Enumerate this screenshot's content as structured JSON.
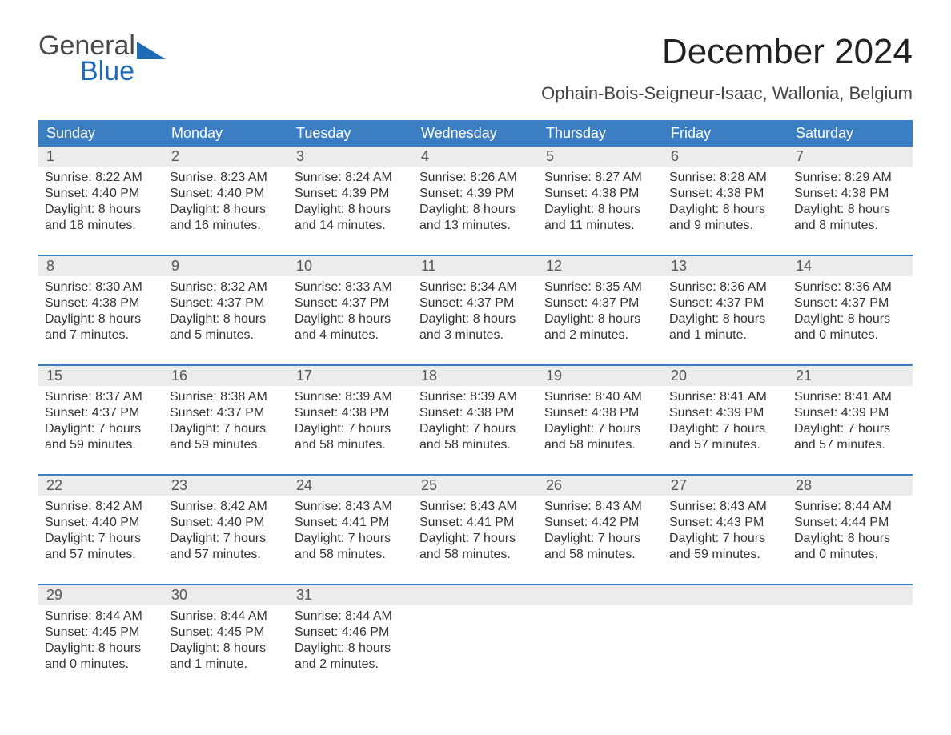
{
  "logo": {
    "line1": "General",
    "line2": "Blue",
    "accent": "#1f6bb8",
    "grey": "#4a4a4a"
  },
  "title": "December 2024",
  "subtitle": "Ophain-Bois-Seigneur-Isaac, Wallonia, Belgium",
  "colors": {
    "header_bg": "#3b7ec1",
    "header_fg": "#ffffff",
    "daynum_bg": "#ececec",
    "week_rule": "#3b7ec1",
    "text": "#333333"
  },
  "weekdays": [
    "Sunday",
    "Monday",
    "Tuesday",
    "Wednesday",
    "Thursday",
    "Friday",
    "Saturday"
  ],
  "weeks": [
    [
      {
        "n": "1",
        "sunrise": "8:22 AM",
        "sunset": "4:40 PM",
        "dl1": "Daylight: 8 hours",
        "dl2": "and 18 minutes."
      },
      {
        "n": "2",
        "sunrise": "8:23 AM",
        "sunset": "4:40 PM",
        "dl1": "Daylight: 8 hours",
        "dl2": "and 16 minutes."
      },
      {
        "n": "3",
        "sunrise": "8:24 AM",
        "sunset": "4:39 PM",
        "dl1": "Daylight: 8 hours",
        "dl2": "and 14 minutes."
      },
      {
        "n": "4",
        "sunrise": "8:26 AM",
        "sunset": "4:39 PM",
        "dl1": "Daylight: 8 hours",
        "dl2": "and 13 minutes."
      },
      {
        "n": "5",
        "sunrise": "8:27 AM",
        "sunset": "4:38 PM",
        "dl1": "Daylight: 8 hours",
        "dl2": "and 11 minutes."
      },
      {
        "n": "6",
        "sunrise": "8:28 AM",
        "sunset": "4:38 PM",
        "dl1": "Daylight: 8 hours",
        "dl2": "and 9 minutes."
      },
      {
        "n": "7",
        "sunrise": "8:29 AM",
        "sunset": "4:38 PM",
        "dl1": "Daylight: 8 hours",
        "dl2": "and 8 minutes."
      }
    ],
    [
      {
        "n": "8",
        "sunrise": "8:30 AM",
        "sunset": "4:38 PM",
        "dl1": "Daylight: 8 hours",
        "dl2": "and 7 minutes."
      },
      {
        "n": "9",
        "sunrise": "8:32 AM",
        "sunset": "4:37 PM",
        "dl1": "Daylight: 8 hours",
        "dl2": "and 5 minutes."
      },
      {
        "n": "10",
        "sunrise": "8:33 AM",
        "sunset": "4:37 PM",
        "dl1": "Daylight: 8 hours",
        "dl2": "and 4 minutes."
      },
      {
        "n": "11",
        "sunrise": "8:34 AM",
        "sunset": "4:37 PM",
        "dl1": "Daylight: 8 hours",
        "dl2": "and 3 minutes."
      },
      {
        "n": "12",
        "sunrise": "8:35 AM",
        "sunset": "4:37 PM",
        "dl1": "Daylight: 8 hours",
        "dl2": "and 2 minutes."
      },
      {
        "n": "13",
        "sunrise": "8:36 AM",
        "sunset": "4:37 PM",
        "dl1": "Daylight: 8 hours",
        "dl2": "and 1 minute."
      },
      {
        "n": "14",
        "sunrise": "8:36 AM",
        "sunset": "4:37 PM",
        "dl1": "Daylight: 8 hours",
        "dl2": "and 0 minutes."
      }
    ],
    [
      {
        "n": "15",
        "sunrise": "8:37 AM",
        "sunset": "4:37 PM",
        "dl1": "Daylight: 7 hours",
        "dl2": "and 59 minutes."
      },
      {
        "n": "16",
        "sunrise": "8:38 AM",
        "sunset": "4:37 PM",
        "dl1": "Daylight: 7 hours",
        "dl2": "and 59 minutes."
      },
      {
        "n": "17",
        "sunrise": "8:39 AM",
        "sunset": "4:38 PM",
        "dl1": "Daylight: 7 hours",
        "dl2": "and 58 minutes."
      },
      {
        "n": "18",
        "sunrise": "8:39 AM",
        "sunset": "4:38 PM",
        "dl1": "Daylight: 7 hours",
        "dl2": "and 58 minutes."
      },
      {
        "n": "19",
        "sunrise": "8:40 AM",
        "sunset": "4:38 PM",
        "dl1": "Daylight: 7 hours",
        "dl2": "and 58 minutes."
      },
      {
        "n": "20",
        "sunrise": "8:41 AM",
        "sunset": "4:39 PM",
        "dl1": "Daylight: 7 hours",
        "dl2": "and 57 minutes."
      },
      {
        "n": "21",
        "sunrise": "8:41 AM",
        "sunset": "4:39 PM",
        "dl1": "Daylight: 7 hours",
        "dl2": "and 57 minutes."
      }
    ],
    [
      {
        "n": "22",
        "sunrise": "8:42 AM",
        "sunset": "4:40 PM",
        "dl1": "Daylight: 7 hours",
        "dl2": "and 57 minutes."
      },
      {
        "n": "23",
        "sunrise": "8:42 AM",
        "sunset": "4:40 PM",
        "dl1": "Daylight: 7 hours",
        "dl2": "and 57 minutes."
      },
      {
        "n": "24",
        "sunrise": "8:43 AM",
        "sunset": "4:41 PM",
        "dl1": "Daylight: 7 hours",
        "dl2": "and 58 minutes."
      },
      {
        "n": "25",
        "sunrise": "8:43 AM",
        "sunset": "4:41 PM",
        "dl1": "Daylight: 7 hours",
        "dl2": "and 58 minutes."
      },
      {
        "n": "26",
        "sunrise": "8:43 AM",
        "sunset": "4:42 PM",
        "dl1": "Daylight: 7 hours",
        "dl2": "and 58 minutes."
      },
      {
        "n": "27",
        "sunrise": "8:43 AM",
        "sunset": "4:43 PM",
        "dl1": "Daylight: 7 hours",
        "dl2": "and 59 minutes."
      },
      {
        "n": "28",
        "sunrise": "8:44 AM",
        "sunset": "4:44 PM",
        "dl1": "Daylight: 8 hours",
        "dl2": "and 0 minutes."
      }
    ],
    [
      {
        "n": "29",
        "sunrise": "8:44 AM",
        "sunset": "4:45 PM",
        "dl1": "Daylight: 8 hours",
        "dl2": "and 0 minutes."
      },
      {
        "n": "30",
        "sunrise": "8:44 AM",
        "sunset": "4:45 PM",
        "dl1": "Daylight: 8 hours",
        "dl2": "and 1 minute."
      },
      {
        "n": "31",
        "sunrise": "8:44 AM",
        "sunset": "4:46 PM",
        "dl1": "Daylight: 8 hours",
        "dl2": "and 2 minutes."
      },
      {
        "empty": true
      },
      {
        "empty": true
      },
      {
        "empty": true
      },
      {
        "empty": true
      }
    ]
  ],
  "labels": {
    "sunrise_prefix": "Sunrise: ",
    "sunset_prefix": "Sunset: "
  },
  "typography": {
    "title_pt": 44,
    "subtitle_pt": 22,
    "weekday_pt": 18,
    "body_pt": 16
  }
}
